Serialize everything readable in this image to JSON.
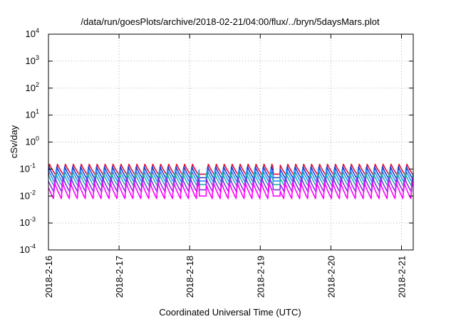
{
  "chart_data": {
    "type": "line",
    "title": "/data/run/goesPlots/archive/2018-02-21/04:00/flux/../bryn/5daysMars.plot",
    "xlabel": "Coordinated Universal Time (UTC)",
    "ylabel": "cSv/day",
    "y_scale": "log",
    "ylim": [
      0.0001,
      10000
    ],
    "y_ticks": [
      {
        "value": 0.0001,
        "base": "10",
        "exp": "-4"
      },
      {
        "value": 0.001,
        "base": "10",
        "exp": "-3"
      },
      {
        "value": 0.01,
        "base": "10",
        "exp": "-2"
      },
      {
        "value": 0.1,
        "base": "10",
        "exp": "-1"
      },
      {
        "value": 1,
        "base": "10",
        "exp": "0"
      },
      {
        "value": 10,
        "base": "10",
        "exp": "1"
      },
      {
        "value": 100,
        "base": "10",
        "exp": "2"
      },
      {
        "value": 1000,
        "base": "10",
        "exp": "3"
      },
      {
        "value": 10000,
        "base": "10",
        "exp": "4"
      }
    ],
    "xlim": [
      "2018-02-16T00:00",
      "2018-02-21T04:00"
    ],
    "x_ticks": [
      {
        "value": "2018-02-16T00:00",
        "label": "2018-2-16"
      },
      {
        "value": "2018-02-17T00:00",
        "label": "2018-2-17"
      },
      {
        "value": "2018-02-18T00:00",
        "label": "2018-2-18"
      },
      {
        "value": "2018-02-19T00:00",
        "label": "2018-2-19"
      },
      {
        "value": "2018-02-20T00:00",
        "label": "2018-2-20"
      },
      {
        "value": "2018-02-21T00:00",
        "label": "2018-2-21"
      }
    ],
    "grid": true,
    "legend": "none",
    "cycle_hours": 2.7,
    "series": [
      {
        "color": "#e0103a",
        "peak": 0.16,
        "trough": 0.055
      },
      {
        "color": "#2040d0",
        "peak": 0.13,
        "trough": 0.04
      },
      {
        "color": "#1e90ff",
        "peak": 0.1,
        "trough": 0.03
      },
      {
        "color": "#20b2aa",
        "peak": 0.075,
        "trough": 0.022
      },
      {
        "color": "#8a2be2",
        "peak": 0.05,
        "trough": 0.014
      },
      {
        "color": "#ff00ff",
        "peak": 0.035,
        "trough": 0.008
      }
    ]
  }
}
